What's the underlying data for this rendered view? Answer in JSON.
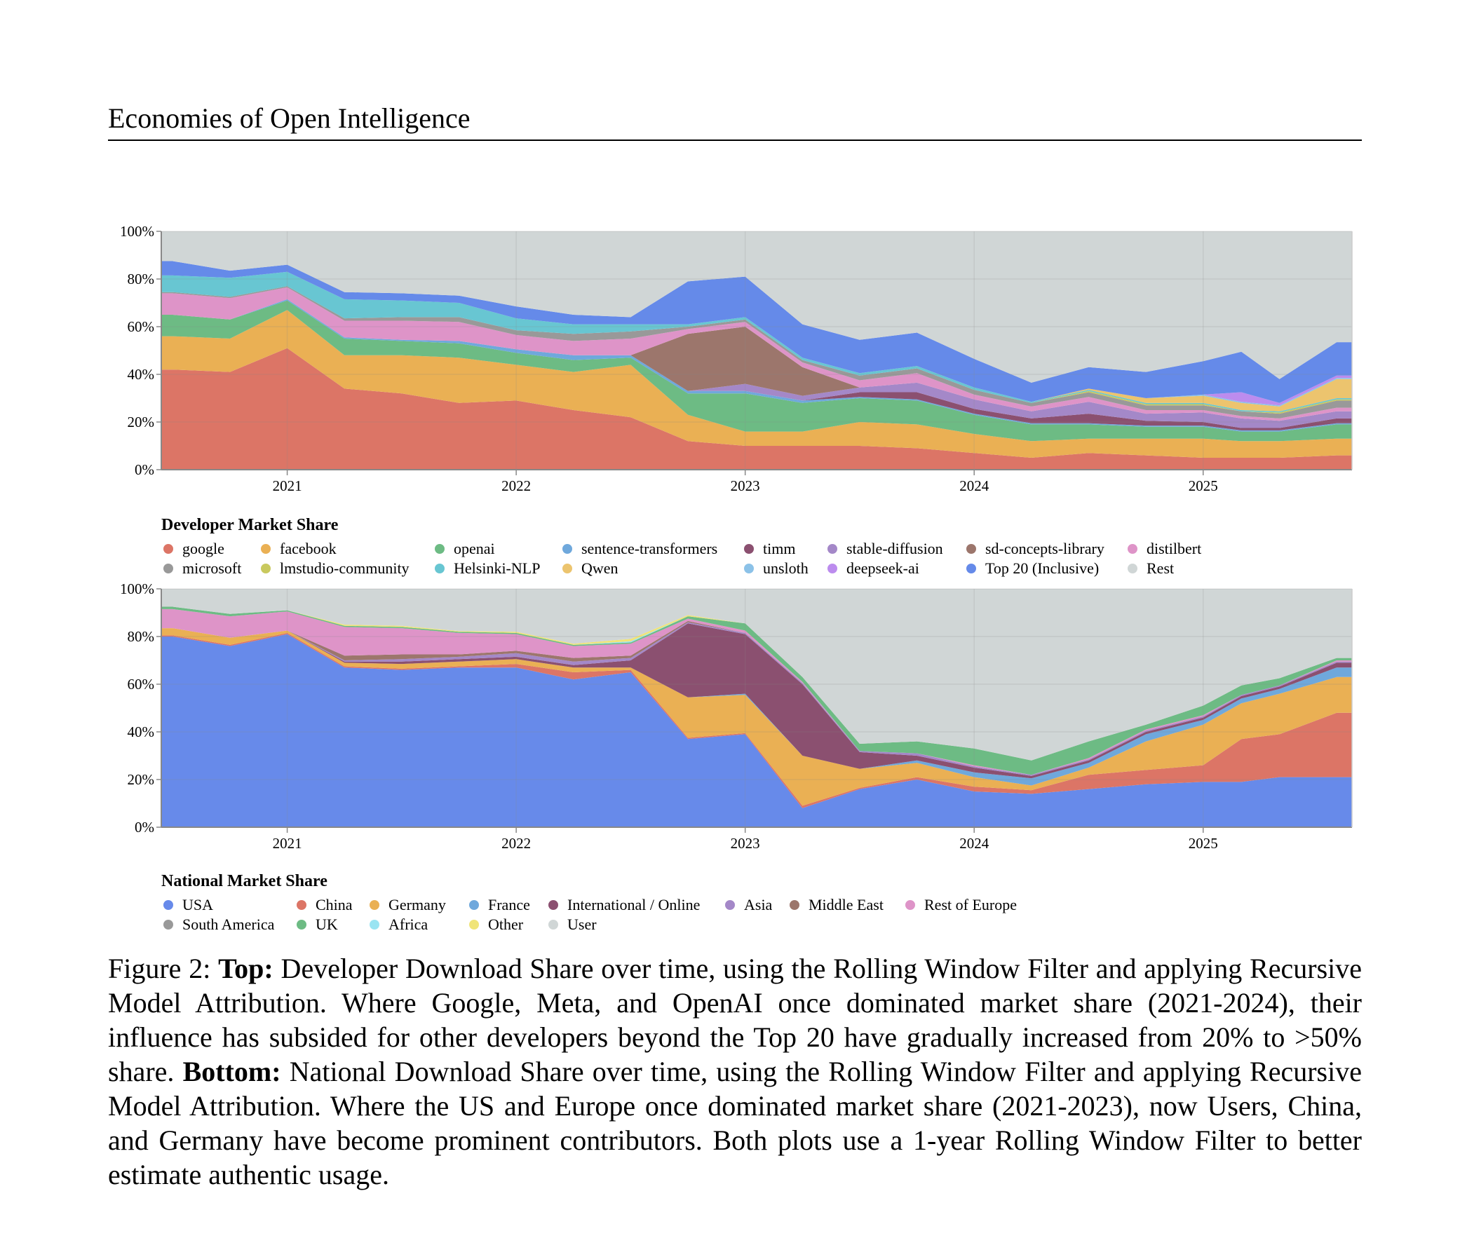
{
  "header": {
    "title": "Economies of Open Intelligence"
  },
  "chart_data": [
    {
      "type": "area",
      "stacked": true,
      "title": "Developer Market Share",
      "legend_position": "bottom",
      "grid": true,
      "ylim": [
        0,
        100
      ],
      "y_ticks": [
        "0%",
        "20%",
        "40%",
        "60%",
        "80%",
        "100%"
      ],
      "x_ticks": [
        "2021",
        "2022",
        "2023",
        "2024",
        "2025"
      ],
      "x": [
        "2020-07",
        "2020-10",
        "2021-01",
        "2021-04",
        "2021-07",
        "2021-10",
        "2022-01",
        "2022-04",
        "2022-07",
        "2022-10",
        "2023-01",
        "2023-04",
        "2023-07",
        "2023-10",
        "2024-01",
        "2024-04",
        "2024-07",
        "2024-10",
        "2025-01",
        "2025-03",
        "2025-05",
        "2025-08"
      ],
      "series": [
        {
          "name": "google",
          "color": "#dc7566",
          "values": [
            42,
            41,
            51,
            34,
            32,
            28,
            29,
            25,
            22,
            12,
            10,
            10,
            10,
            9,
            7,
            5,
            7,
            6,
            5,
            5,
            5,
            6
          ]
        },
        {
          "name": "facebook",
          "color": "#eab054",
          "values": [
            14,
            14,
            16,
            14,
            16,
            19,
            15,
            16,
            22,
            11,
            6,
            6,
            10,
            10,
            8,
            7,
            6,
            7,
            8,
            7,
            7,
            7
          ]
        },
        {
          "name": "openai",
          "color": "#6dbb84",
          "values": [
            9,
            8,
            4,
            7,
            6,
            6,
            5,
            5,
            3,
            9,
            16,
            12,
            10,
            10,
            8,
            7,
            6,
            5,
            5,
            4,
            4,
            6
          ]
        },
        {
          "name": "sentence-transformers",
          "color": "#6fa8dc",
          "values": [
            0,
            0,
            0.5,
            0.5,
            0.5,
            1,
            1.5,
            2,
            1,
            1,
            1,
            1,
            0.5,
            0.5,
            0.5,
            0.5,
            0.5,
            0.5,
            0.5,
            0.5,
            0.5,
            0.5
          ]
        },
        {
          "name": "timm",
          "color": "#8b5070",
          "values": [
            0,
            0,
            0,
            0,
            0,
            0,
            0,
            0,
            0,
            0,
            0,
            0,
            2,
            3,
            2,
            2,
            4,
            2,
            1.5,
            1,
            1,
            2
          ]
        },
        {
          "name": "stable-diffusion",
          "color": "#a488c8",
          "values": [
            0,
            0,
            0,
            0,
            0,
            0,
            0,
            0,
            0,
            0,
            3,
            2,
            2,
            4,
            4,
            3,
            5,
            3,
            4,
            4,
            3,
            3
          ]
        },
        {
          "name": "sd-concepts-library",
          "color": "#9c766c",
          "values": [
            0,
            0,
            0,
            0,
            0,
            0,
            0,
            0,
            0,
            24,
            24,
            12,
            0,
            0,
            0,
            0,
            0,
            0,
            0,
            0,
            0,
            0
          ]
        },
        {
          "name": "distilbert",
          "color": "#de94c8",
          "values": [
            9,
            9,
            5,
            7,
            8,
            8,
            6,
            6,
            7,
            2,
            2,
            2,
            3,
            4,
            2,
            2,
            2,
            1.5,
            1,
            1,
            1,
            1.5
          ]
        },
        {
          "name": "microsoft",
          "color": "#999999",
          "values": [
            0.5,
            0.5,
            0.5,
            1,
            1.5,
            2,
            2,
            3,
            3,
            1,
            1,
            1,
            2,
            2,
            2,
            1.5,
            2,
            2,
            2,
            2,
            2,
            3
          ]
        },
        {
          "name": "lmstudio-community",
          "color": "#c9c95e",
          "values": [
            0,
            0,
            0,
            0,
            0,
            0,
            0,
            0,
            0,
            0,
            0,
            0,
            0,
            0,
            0,
            0,
            0.5,
            0.5,
            0.5,
            0,
            0.5,
            0.5
          ]
        },
        {
          "name": "Helsinki-NLP",
          "color": "#68c6d2",
          "values": [
            7,
            8,
            6,
            8,
            7,
            6,
            5,
            4,
            3,
            1,
            1,
            1,
            1,
            1,
            1,
            0.5,
            0.5,
            0.5,
            0.5,
            0.5,
            0.5,
            0.5
          ]
        },
        {
          "name": "Qwen",
          "color": "#ecc46e",
          "values": [
            0,
            0,
            0,
            0,
            0,
            0,
            0,
            0,
            0,
            0,
            0,
            0,
            0,
            0,
            0,
            0,
            0.5,
            2,
            3,
            3,
            2,
            8
          ]
        },
        {
          "name": "unsloth",
          "color": "#8cc2e8",
          "values": [
            0,
            0,
            0,
            0,
            0,
            0,
            0,
            0,
            0,
            0,
            0,
            0,
            0,
            0,
            0,
            0,
            0,
            0,
            0.5,
            0.5,
            0.5,
            0.5
          ]
        },
        {
          "name": "deepseek-ai",
          "color": "#bc8cee",
          "values": [
            0,
            0,
            0,
            0,
            0,
            0,
            0,
            0,
            0,
            0,
            0,
            0,
            0,
            0,
            0,
            0,
            0,
            0,
            0,
            4,
            1,
            1
          ]
        },
        {
          "name": "Top 20 (Inclusive)",
          "color": "#658ae9",
          "values": [
            6,
            3,
            3,
            3,
            3,
            3,
            5,
            4,
            3,
            18,
            17,
            14,
            14,
            14,
            12,
            8,
            9,
            11,
            14,
            17,
            10,
            14
          ]
        },
        {
          "name": "Rest",
          "color": "#d0d6d6",
          "remainder": true
        }
      ]
    },
    {
      "type": "area",
      "stacked": true,
      "title": "National Market Share",
      "legend_position": "bottom",
      "grid": true,
      "ylim": [
        0,
        100
      ],
      "y_ticks": [
        "0%",
        "20%",
        "40%",
        "60%",
        "80%",
        "100%"
      ],
      "x_ticks": [
        "2021",
        "2022",
        "2023",
        "2024",
        "2025"
      ],
      "x": [
        "2020-07",
        "2020-10",
        "2021-01",
        "2021-04",
        "2021-07",
        "2021-10",
        "2022-01",
        "2022-04",
        "2022-07",
        "2022-10",
        "2023-01",
        "2023-04",
        "2023-07",
        "2023-10",
        "2024-01",
        "2024-04",
        "2024-07",
        "2024-10",
        "2025-01",
        "2025-03",
        "2025-05",
        "2025-08"
      ],
      "series": [
        {
          "name": "USA",
          "color": "#678aea",
          "values": [
            80,
            76,
            81,
            67,
            66,
            67,
            67,
            62,
            65,
            37,
            39,
            8,
            16,
            20,
            15,
            14,
            16,
            18,
            19,
            19,
            21,
            21
          ]
        },
        {
          "name": "China",
          "color": "#dc7566",
          "values": [
            0.5,
            0.5,
            0.5,
            0.5,
            0.5,
            0.5,
            1.5,
            3,
            1,
            0.5,
            0.5,
            1,
            0.5,
            1,
            2,
            1.5,
            6,
            6,
            7,
            18,
            18,
            27
          ]
        },
        {
          "name": "Germany",
          "color": "#eab054",
          "values": [
            3,
            3,
            1,
            1.5,
            2,
            2,
            2,
            2,
            1,
            17,
            16,
            21,
            8,
            6,
            4,
            2,
            3,
            12,
            17,
            15,
            17,
            15
          ]
        },
        {
          "name": "France",
          "color": "#6fa8dc",
          "values": [
            0,
            0,
            0,
            0,
            0,
            0,
            0,
            0,
            0,
            0,
            0.5,
            0,
            0,
            1,
            2,
            3,
            2,
            3,
            2,
            2,
            2,
            4
          ]
        },
        {
          "name": "International / Online",
          "color": "#8b5070",
          "values": [
            0,
            0,
            0,
            0.5,
            1,
            1,
            1,
            1,
            3,
            31,
            25,
            30,
            7,
            2,
            2,
            1,
            1,
            1,
            1,
            1,
            1,
            2
          ]
        },
        {
          "name": "Asia",
          "color": "#a488c8",
          "values": [
            0,
            0,
            0,
            0.5,
            1,
            1,
            1.5,
            1.5,
            1,
            0.5,
            0.5,
            0.5,
            0.5,
            1,
            0.5,
            0.5,
            0.5,
            0.5,
            0.5,
            0.5,
            0.5,
            0.5
          ]
        },
        {
          "name": "Middle East",
          "color": "#9c766c",
          "values": [
            0,
            0,
            0,
            2,
            2,
            1,
            1,
            1.5,
            1,
            0.5,
            0,
            0,
            0,
            0,
            0,
            0,
            0,
            0,
            0,
            0,
            0,
            0
          ]
        },
        {
          "name": "Rest of Europe",
          "color": "#de94c8",
          "values": [
            8,
            9,
            8,
            12,
            11,
            9,
            7,
            5,
            5,
            1,
            1,
            0.5,
            0,
            0,
            0.5,
            0,
            0.5,
            0.5,
            0.5,
            0,
            0,
            0.5
          ]
        },
        {
          "name": "South America",
          "color": "#999999",
          "values": [
            0,
            0,
            0,
            0,
            0,
            0,
            0,
            0,
            0,
            0,
            0,
            0,
            0,
            0,
            0,
            0,
            0,
            0,
            0,
            0,
            0,
            0
          ]
        },
        {
          "name": "UK",
          "color": "#6dbb84",
          "values": [
            1,
            1,
            0.5,
            0.5,
            0.5,
            0.5,
            0.5,
            0.5,
            0.5,
            1,
            3,
            2,
            3,
            5,
            7,
            6,
            7,
            2,
            4,
            4,
            3,
            1
          ]
        },
        {
          "name": "Africa",
          "color": "#9ae4f2",
          "values": [
            0,
            0,
            0,
            0,
            0,
            0,
            0,
            0,
            0.5,
            0,
            0,
            0,
            0,
            0,
            0,
            0,
            0,
            0,
            0,
            0,
            0,
            0
          ]
        },
        {
          "name": "Other",
          "color": "#f0e478",
          "values": [
            0,
            0,
            0,
            0.5,
            0.5,
            0.3,
            0.5,
            0.5,
            1,
            0.5,
            0,
            0,
            0,
            0,
            0,
            0,
            0,
            0,
            0,
            0,
            0,
            0
          ]
        },
        {
          "name": "User",
          "color": "#d0d6d6",
          "remainder": true
        }
      ]
    }
  ],
  "caption": {
    "label": "Figure 2: ",
    "top_label": "Top:",
    "top_text": " Developer Download Share over time, using the Rolling Window Filter and applying Recursive Model Attribution. Where Google, Meta, and OpenAI once dominated market share (2021-2024), their influence has subsided for other developers beyond the Top 20 have gradually increased from 20% to >50% share. ",
    "bottom_label": "Bottom:",
    "bottom_text": " National Download Share over time, using the Rolling Window Filter and applying Recursive Model Attribution. Where the US and Europe once dominated market share (2021-2023), now Users, China, and Germany have become prominent contributors. Both plots use a 1-year Rolling Window Filter to better estimate authentic usage."
  }
}
